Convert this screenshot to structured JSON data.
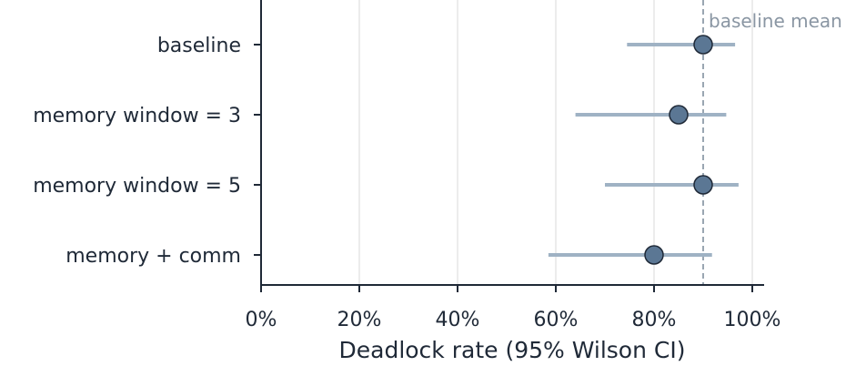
{
  "chart_data": {
    "type": "scatter",
    "subtype": "forest-plot",
    "title": "",
    "xlabel": "Deadlock rate (95% Wilson CI)",
    "ylabel": "",
    "xlim": [
      0,
      1.02
    ],
    "x_ticks": [
      0,
      0.2,
      0.4,
      0.6,
      0.8,
      1.0
    ],
    "x_tick_labels": [
      "0%",
      "20%",
      "40%",
      "60%",
      "80%",
      "100%"
    ],
    "grid": "vertical",
    "categories": [
      "baseline",
      "memory window = 3",
      "memory window = 5",
      "memory + comm"
    ],
    "series": [
      {
        "estimates": [
          0.9,
          0.85,
          0.9,
          0.8
        ],
        "ci_low": [
          0.745,
          0.64,
          0.7,
          0.585
        ],
        "ci_high": [
          0.965,
          0.947,
          0.972,
          0.918
        ]
      }
    ],
    "reference_line": {
      "value": 0.9,
      "label": "baseline mean",
      "style": "dashed"
    },
    "colors": {
      "point_fill": "#5b7794",
      "point_stroke": "#1f2937",
      "ci": "#9fb2c4",
      "ref_line": "#9aa6b2",
      "ref_label": "#8a96a3",
      "grid": "#d9d9d9",
      "axis": "#1f2937",
      "text": "#1f2937"
    }
  }
}
